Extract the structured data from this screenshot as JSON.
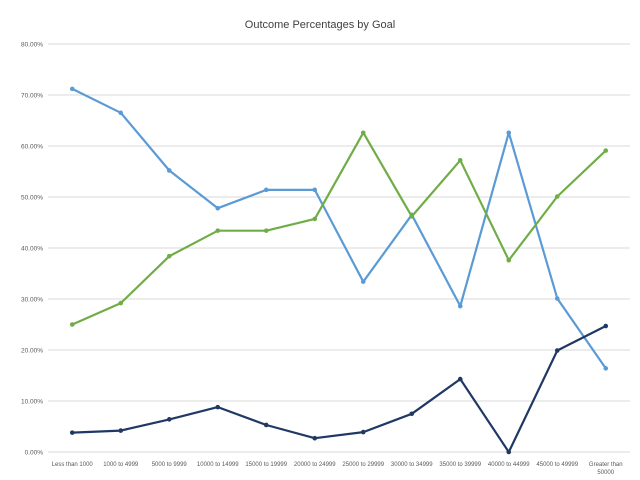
{
  "chart_data": {
    "type": "line",
    "title": "Outcome Percentages by Goal",
    "xlabel": "",
    "ylabel": "",
    "ylim": [
      0,
      80
    ],
    "y_ticks": [
      "0.00%",
      "10.00%",
      "20.00%",
      "30.00%",
      "40.00%",
      "50.00%",
      "60.00%",
      "70.00%",
      "80.00%"
    ],
    "grid": true,
    "legend": "none",
    "categories": [
      "Less than 1000",
      "1000 to 4999",
      "5000 to 9999",
      "10000 to 14999",
      "15000 to 19999",
      "20000 to 24999",
      "25000 to 29999",
      "30000 to 34999",
      "35000 to 39999",
      "40000 to 44999",
      "45000 to 49999",
      "Greater than 50000"
    ],
    "series": [
      {
        "color": "#5b9bd5",
        "values": [
          71.2,
          66.5,
          55.2,
          47.8,
          51.4,
          51.4,
          33.4,
          46.5,
          28.6,
          62.6,
          30.1,
          16.4
        ]
      },
      {
        "color": "#70ad47",
        "values": [
          25.0,
          29.2,
          38.4,
          43.4,
          43.4,
          45.7,
          62.6,
          46.2,
          57.2,
          37.6,
          50.1,
          59.1
        ]
      },
      {
        "color": "#203864",
        "values": [
          3.8,
          4.2,
          6.4,
          8.8,
          5.3,
          2.7,
          3.9,
          7.5,
          14.3,
          0.0,
          19.9,
          24.7
        ]
      }
    ]
  }
}
